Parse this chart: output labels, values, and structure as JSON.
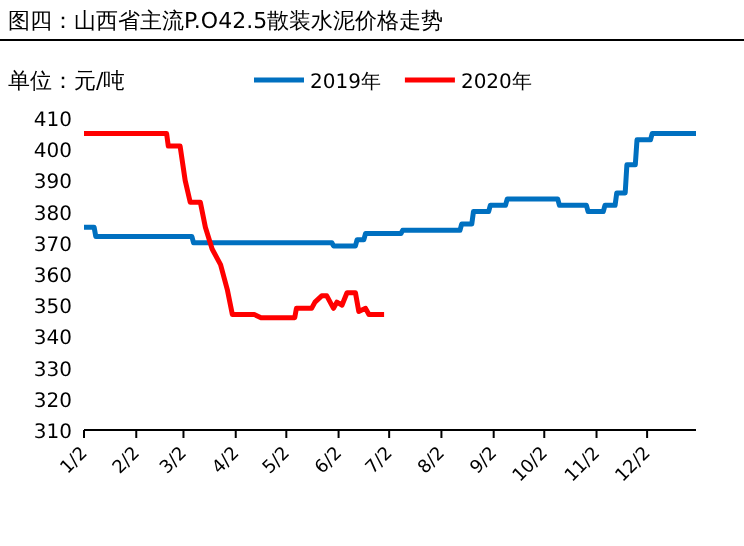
{
  "chart_data": {
    "type": "line",
    "title": "图四：山西省主流P.O42.5散装水泥价格走势",
    "ylabel": "单位：元/吨",
    "xlim": [
      "--01-02",
      "--12-31"
    ],
    "xticks": [
      {
        "value": "--01-02",
        "label": "1/2"
      },
      {
        "value": "--02-02",
        "label": "2/2"
      },
      {
        "value": "--03-02",
        "label": "3/2"
      },
      {
        "value": "--04-02",
        "label": "4/2"
      },
      {
        "value": "--05-02",
        "label": "5/2"
      },
      {
        "value": "--06-02",
        "label": "6/2"
      },
      {
        "value": "--07-02",
        "label": "7/2"
      },
      {
        "value": "--08-02",
        "label": "8/2"
      },
      {
        "value": "--09-02",
        "label": "9/2"
      },
      {
        "value": "--10-02",
        "label": "10/2"
      },
      {
        "value": "--11-02",
        "label": "11/2"
      },
      {
        "value": "--12-02",
        "label": "12/2"
      }
    ],
    "ylim": [
      310,
      410
    ],
    "yticks": [
      310,
      320,
      330,
      340,
      350,
      360,
      370,
      380,
      390,
      400,
      410
    ],
    "grid": false,
    "legend": "top",
    "marker": "none",
    "line_style": "solid",
    "series": [
      {
        "name": "2019年",
        "color": "#0070c0",
        "x": [
          "--01-02",
          "--01-08",
          "--01-09",
          "--03-07",
          "--03-08",
          "--05-29",
          "--05-30",
          "--06-12",
          "--06-13",
          "--06-17",
          "--06-18",
          "--07-09",
          "--07-10",
          "--08-13",
          "--08-14",
          "--08-20",
          "--08-21",
          "--08-30",
          "--08-31",
          "--09-09",
          "--09-10",
          "--10-10",
          "--10-11",
          "--10-27",
          "--10-28",
          "--11-06",
          "--11-07",
          "--11-13",
          "--11-14",
          "--11-19",
          "--11-20",
          "--11-25",
          "--11-26",
          "--12-04",
          "--12-05",
          "--12-31"
        ],
        "values": [
          375,
          375,
          372,
          372,
          370,
          370,
          369,
          369,
          371,
          371,
          373,
          373,
          374,
          374,
          376,
          376,
          380,
          380,
          382,
          382,
          384,
          384,
          382,
          382,
          380,
          380,
          382,
          382,
          386,
          386,
          395,
          395,
          403,
          403,
          405,
          405
        ]
      },
      {
        "name": "2020年",
        "color": "#ff0000",
        "x": [
          "--01-02",
          "--02-20",
          "--02-21",
          "--02-28",
          "--03-03",
          "--03-06",
          "--03-12",
          "--03-15",
          "--03-19",
          "--03-24",
          "--03-28",
          "--03-31",
          "--04-13",
          "--04-17",
          "--05-07",
          "--05-08",
          "--05-17",
          "--05-19",
          "--05-23",
          "--05-26",
          "--05-30",
          "--06-01",
          "--06-04",
          "--06-07",
          "--06-12",
          "--06-14",
          "--06-18",
          "--06-20",
          "--06-29"
        ],
        "values": [
          405,
          405,
          401,
          401,
          390,
          383,
          383,
          375,
          368,
          363,
          355,
          347,
          347,
          346,
          346,
          349,
          349,
          351,
          353,
          353,
          349,
          351,
          350,
          354,
          354,
          348,
          349,
          347,
          347
        ]
      }
    ]
  }
}
